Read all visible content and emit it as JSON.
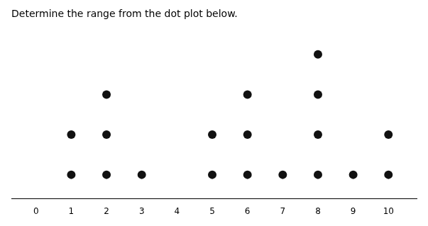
{
  "chart_data": {
    "type": "dot_plot",
    "title": "Determine the range from the dot plot below.",
    "x": [
      1,
      2,
      3,
      5,
      6,
      7,
      8,
      9,
      10
    ],
    "values": [
      2,
      3,
      1,
      2,
      3,
      1,
      4,
      1,
      2
    ],
    "color": "#111111",
    "marker": "circle",
    "xlim": [
      -0.7,
      10.8
    ],
    "xticks": [
      0,
      1,
      2,
      3,
      4,
      5,
      6,
      7,
      8,
      9,
      10
    ],
    "grid": false,
    "tick_labels": "x"
  }
}
